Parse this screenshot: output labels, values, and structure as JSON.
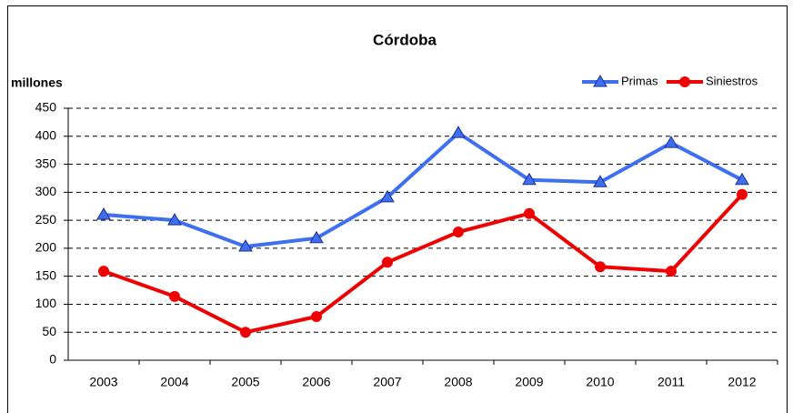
{
  "chart_data": {
    "type": "line",
    "title": "Córdoba",
    "ylabel": "millones",
    "categories": [
      "2003",
      "2004",
      "2005",
      "2006",
      "2007",
      "2008",
      "2009",
      "2010",
      "2011",
      "2012"
    ],
    "series": [
      {
        "name": "Primas",
        "color": "#3d6ff0",
        "marker": "triangle",
        "values": [
          260,
          250,
          203,
          218,
          291,
          406,
          322,
          318,
          388,
          322
        ]
      },
      {
        "name": "Siniestros",
        "color": "#ee0000",
        "marker": "circle",
        "values": [
          159,
          114,
          50,
          78,
          175,
          229,
          262,
          167,
          159,
          296
        ]
      }
    ],
    "ylim": [
      0,
      450
    ],
    "yticks": [
      0,
      50,
      100,
      150,
      200,
      250,
      300,
      350,
      400,
      450
    ],
    "grid": true,
    "legend": "top-right"
  }
}
